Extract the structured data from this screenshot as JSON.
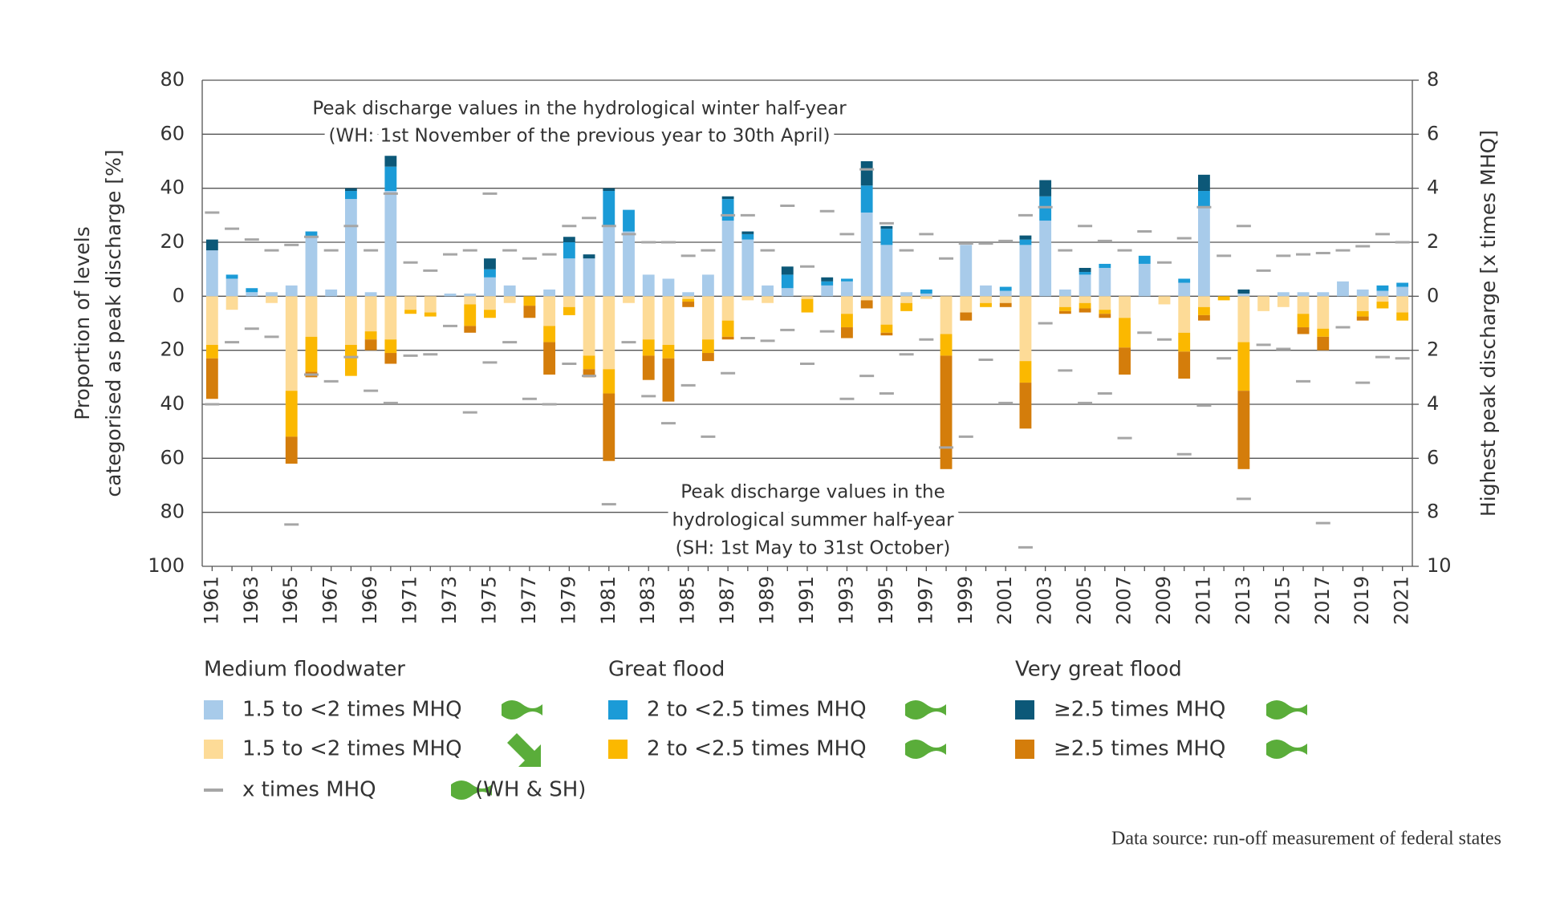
{
  "chart_data": {
    "type": "bar",
    "annotations": [
      "Peak discharge values in the hydrological winter half-year",
      "(WH: 1st November of the previous year to 30th April)",
      "Peak discharge values in the",
      "hydrological summer half-year",
      "(SH: 1st May to 31st October)"
    ],
    "ylabel": [
      "Proportion of levels",
      "categorised as peak discharge [%]"
    ],
    "y2label": "Highest peak discharge [x times MHQ]",
    "legend_groups": [
      "Medium floodwater",
      "Great flood",
      "Very great flood"
    ],
    "marker_note": "(WH & SH)",
    "source": "Data source: run-off measurement of federal states",
    "categories": [
      "1961",
      null,
      "1963",
      null,
      "1965",
      null,
      "1967",
      null,
      "1969",
      null,
      "1971",
      null,
      "1973",
      null,
      "1975",
      null,
      "1977",
      null,
      "1979",
      null,
      "1981",
      null,
      "1983",
      null,
      "1985",
      null,
      "1987",
      null,
      "1989",
      null,
      "1991",
      null,
      "1993",
      null,
      "1995",
      null,
      "1997",
      null,
      "1999",
      null,
      "2001",
      null,
      "2003",
      null,
      "2005",
      null,
      "2007",
      null,
      "2009",
      null,
      "2011",
      null,
      "2013",
      null,
      "2015",
      null,
      "2017",
      null,
      "2019",
      null,
      "2021"
    ],
    "ylim": [
      -100,
      80
    ],
    "yticks": [
      {
        "value": -100,
        "label": "100"
      },
      {
        "value": -80,
        "label": "80"
      },
      {
        "value": -60,
        "label": "60"
      },
      {
        "value": -40,
        "label": "40"
      },
      {
        "value": -20,
        "label": "20"
      },
      0,
      20,
      40,
      60,
      80
    ],
    "y2lim": [
      -10,
      8
    ],
    "y2ticks": [
      {
        "value": -10,
        "label": "10"
      },
      {
        "value": -8,
        "label": "8"
      },
      {
        "value": -6,
        "label": "6"
      },
      {
        "value": -4,
        "label": "4"
      },
      {
        "value": -2,
        "label": "2"
      },
      0,
      2,
      4,
      6,
      8
    ],
    "grid": true,
    "series": [
      {
        "name": "1.5 to <2 times MHQ",
        "color": "#a8cbea",
        "values": [
          17,
          6.5,
          1.5,
          1.5,
          4,
          22,
          2.5,
          36,
          1.5,
          39,
          0,
          0,
          1,
          1,
          7,
          4,
          0,
          2.5,
          14,
          14,
          26,
          24,
          8,
          6.5,
          1.5,
          8,
          28,
          21,
          4,
          3,
          0,
          4,
          5.5,
          31,
          19,
          1.5,
          1,
          0,
          19,
          4,
          2,
          19,
          28,
          2.5,
          8,
          10.5,
          0,
          12,
          0,
          5,
          33,
          0,
          1,
          0,
          1.5,
          1.5,
          1.5,
          5.5,
          2.5,
          2,
          3.5
        ]
      },
      {
        "name": "2 to <2.5 times MHQ",
        "color": "#1b9bd7",
        "values": [
          0,
          1.5,
          1.5,
          0,
          0,
          2,
          0,
          3,
          0,
          9,
          0,
          0,
          0,
          0,
          3,
          0,
          0,
          0,
          6,
          0,
          13,
          8,
          0,
          0,
          0,
          0,
          8,
          2,
          0,
          5,
          0,
          1.5,
          1,
          10,
          6,
          0,
          1.5,
          0,
          0,
          0,
          1.5,
          2,
          9,
          0,
          1,
          1.5,
          0,
          3,
          0,
          1.5,
          6,
          0,
          0,
          0,
          0,
          0,
          0,
          0,
          0,
          2,
          1.5
        ]
      },
      {
        "name": "≥2.5 times MHQ",
        "color": "#0c5878",
        "values": [
          4,
          0,
          0,
          0,
          0,
          0,
          0,
          1,
          0,
          4,
          0,
          0,
          0,
          0,
          4,
          0,
          0,
          0,
          2,
          1.5,
          1,
          0,
          0,
          0,
          0,
          0,
          1,
          1,
          0,
          3,
          0,
          1.5,
          0,
          9,
          1,
          0,
          0,
          0,
          0,
          0,
          0,
          1.5,
          6,
          0,
          1.5,
          0,
          0,
          0,
          0,
          0,
          6,
          0,
          1.5,
          0,
          0,
          0,
          0,
          0,
          0,
          0,
          0
        ]
      },
      {
        "name": "1.5 to <2 times MHQ",
        "color": "#fddb97",
        "values": [
          -18,
          -5,
          0,
          -2.5,
          -35,
          -15,
          0,
          -18,
          -13,
          -16,
          -5,
          -6,
          0,
          -3,
          -5,
          -2.5,
          0,
          -11,
          -4,
          -22,
          -27,
          -2.5,
          -16,
          -18,
          -1,
          -16,
          -9,
          -1.5,
          -2.5,
          0,
          -1,
          0,
          -6.5,
          -1.5,
          -10.5,
          -2.5,
          -1,
          -14,
          -6,
          -2.5,
          -2.5,
          -24,
          0,
          -4,
          -2.5,
          -5,
          -8,
          0,
          -3,
          -13.5,
          -4,
          0,
          -17,
          -5.5,
          -4,
          -6.5,
          -12,
          0,
          -5.5,
          -2,
          -6
        ]
      },
      {
        "name": "2 to <2.5 times MHQ",
        "color": "#fbb800",
        "values": [
          -5,
          0,
          0,
          0,
          -17,
          -13,
          0,
          -11.5,
          -3,
          -5,
          -1.5,
          -1.5,
          0,
          -8,
          -3,
          0,
          -3.5,
          -6,
          -3,
          -5,
          -9,
          0,
          -6,
          -5,
          -1,
          -5,
          -6,
          0,
          0,
          0,
          -5,
          0,
          -5,
          0,
          -3,
          -3,
          0,
          -8,
          0,
          -1.5,
          0,
          -8,
          0,
          -1.5,
          -2,
          -1.5,
          -11,
          0,
          0,
          -7,
          -3,
          -1.5,
          -18,
          0,
          0,
          -5,
          -3,
          0,
          -2,
          -2.5,
          -3
        ]
      },
      {
        "name": "≥2.5 times MHQ",
        "color": "#d47d0b",
        "values": [
          -15,
          0,
          0,
          0,
          -10,
          -2,
          0,
          0,
          -4,
          -4,
          0,
          0,
          0,
          -2.5,
          0,
          0,
          -4.5,
          -12,
          0,
          -3,
          -25,
          0,
          -9,
          -16,
          -2,
          -3,
          -1,
          0,
          0,
          0,
          0,
          0,
          -4,
          -3,
          -1,
          0,
          0,
          -42,
          -3,
          0,
          -1.5,
          -17,
          0,
          -1,
          -1.5,
          -1.5,
          -10,
          0,
          0,
          -10,
          -2,
          0,
          -29,
          0,
          0,
          -2.5,
          -5,
          0,
          -1.5,
          0,
          0
        ]
      },
      {
        "name": "x times MHQ",
        "type": "marker",
        "axis": "y2",
        "color": "#a6a6a6",
        "values": [
          3.1,
          2.5,
          2.1,
          1.7,
          1.9,
          2.2,
          1.7,
          2.6,
          1.7,
          3.8,
          1.25,
          0.95,
          1.55,
          1.7,
          3.8,
          1.7,
          1.4,
          1.55,
          2.6,
          2.9,
          2.6,
          2.3,
          2.0,
          2.0,
          1.5,
          1.7,
          3.0,
          3.0,
          1.7,
          3.35,
          1.1,
          3.15,
          2.3,
          4.7,
          2.7,
          1.7,
          2.3,
          1.4,
          1.95,
          1.95,
          2.05,
          3.0,
          3.3,
          1.7,
          2.6,
          2.05,
          1.7,
          2.4,
          1.25,
          2.15,
          3.3,
          1.5,
          2.6,
          0.95,
          1.5,
          1.55,
          1.6,
          1.7,
          1.85,
          2.3,
          2.0
        ]
      },
      {
        "type": "marker",
        "axis": "y2",
        "color": "#a6a6a6",
        "values": [
          -4.0,
          -1.7,
          -1.2,
          -1.5,
          -8.45,
          -2.9,
          -3.15,
          -2.25,
          -3.5,
          -3.95,
          -2.2,
          -2.15,
          -1.1,
          -4.3,
          -2.45,
          -1.7,
          -3.8,
          -4.0,
          -2.5,
          -2.95,
          -7.7,
          -1.7,
          -3.7,
          -4.7,
          -3.3,
          -5.2,
          -2.85,
          -1.55,
          -1.65,
          -1.25,
          -2.5,
          -1.3,
          -3.8,
          -2.95,
          -3.6,
          -2.15,
          -1.6,
          -5.6,
          -5.2,
          -2.35,
          -3.95,
          -9.3,
          -1.0,
          -2.75,
          -3.95,
          -3.6,
          -5.25,
          -1.35,
          -1.6,
          -5.85,
          -4.05,
          -2.3,
          -7.5,
          -1.8,
          -1.95,
          -3.15,
          -8.4,
          -1.15,
          -3.2,
          -2.25,
          -2.3
        ]
      }
    ]
  }
}
